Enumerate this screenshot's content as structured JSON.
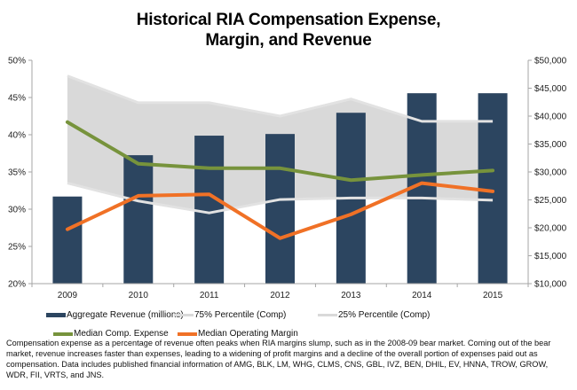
{
  "chart_data": {
    "type": "bar",
    "title_line1": "Historical RIA Compensation Expense,",
    "title_line2": "Margin, and Revenue",
    "categories": [
      "2009",
      "2010",
      "2011",
      "2012",
      "2013",
      "2014",
      "2015"
    ],
    "left_axis": {
      "range": [
        0.2,
        0.5
      ],
      "ticks": [
        "20%",
        "25%",
        "30%",
        "35%",
        "40%",
        "45%",
        "50%"
      ],
      "tick_values": [
        0.2,
        0.25,
        0.3,
        0.35,
        0.4,
        0.45,
        0.5
      ]
    },
    "right_axis": {
      "range": [
        10000,
        50000
      ],
      "ticks": [
        "$10,000",
        "$15,000",
        "$20,000",
        "$25,000",
        "$30,000",
        "$35,000",
        "$40,000",
        "$45,000",
        "$50,000"
      ],
      "tick_values": [
        10000,
        15000,
        20000,
        25000,
        30000,
        35000,
        40000,
        45000,
        50000
      ]
    },
    "series": [
      {
        "name": "Aggregate Revenue (millions)",
        "type": "bar",
        "axis": "right",
        "color": "#2c4560",
        "values": [
          25600,
          33000,
          36500,
          36800,
          40600,
          44100,
          44100
        ]
      },
      {
        "name": "75% Percentile (Comp)",
        "type": "area-upper",
        "axis": "left",
        "color": "#d9d9d9",
        "values": [
          0.479,
          0.443,
          0.443,
          0.425,
          0.448,
          0.418,
          0.418
        ]
      },
      {
        "name": "25% Percentile (Comp)",
        "type": "area-lower",
        "axis": "left",
        "color": "#d9d9d9",
        "values": [
          0.335,
          0.311,
          0.295,
          0.313,
          0.315,
          0.315,
          0.312
        ]
      },
      {
        "name": "Median Comp. Expense",
        "type": "line",
        "axis": "left",
        "color": "#77933c",
        "values": [
          0.417,
          0.361,
          0.355,
          0.355,
          0.339,
          0.346,
          0.352
        ]
      },
      {
        "name": "Median Operating Margin",
        "type": "line",
        "axis": "left",
        "color": "#f07126",
        "values": [
          0.273,
          0.318,
          0.32,
          0.261,
          0.293,
          0.335,
          0.324
        ]
      }
    ],
    "legend_position": "bottom",
    "grid": false
  },
  "caption": "Compensation expense as a percentage of revenue often peaks when RIA margins slump, such as in the 2008-09 bear market.  Coming out of the bear market, revenue increases faster than expenses, leading to a widening of profit margins and a decline of the overall portion of expenses paid out as compensation.  Data includes published financial information of AMG, BLK, LM, WHG, CLMS, CNS, GBL, IVZ, BEN, DHIL, EV, HNNA, TROW, GROW, WDR, FII, VRTS, and JNS."
}
